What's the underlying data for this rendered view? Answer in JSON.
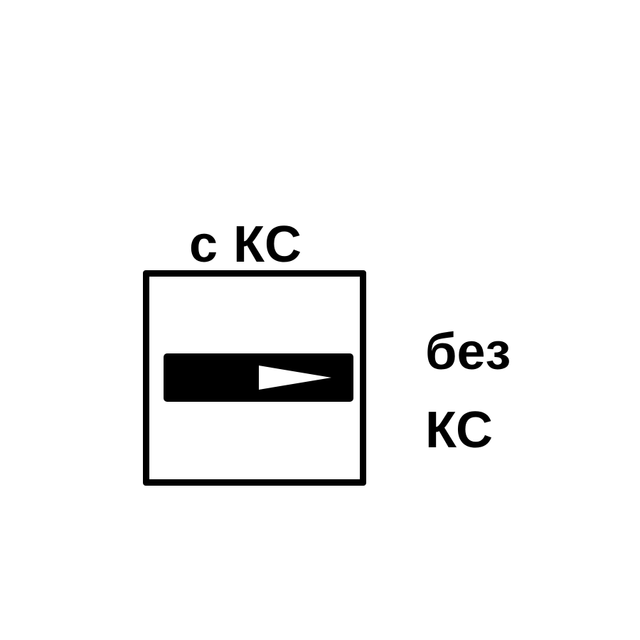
{
  "diagram": {
    "top_label": "с КС",
    "right_label_line1": "без",
    "right_label_line2": "КС",
    "arrow_direction": "right",
    "arrow_icon": "arrow-right-icon",
    "colors": {
      "stroke": "#000000",
      "fill": "#000000",
      "background": "#ffffff",
      "arrow": "#ffffff"
    }
  }
}
